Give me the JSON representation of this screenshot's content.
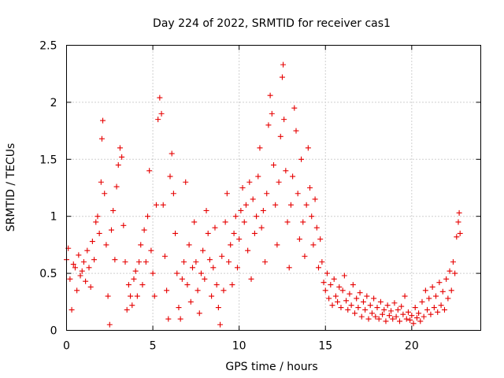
{
  "chart_data": {
    "type": "scatter",
    "title": "Day 224 of 2022, SRMTID for receiver cas1",
    "xlabel": "GPS time / hours",
    "ylabel": "SRMTID / TECUs",
    "xlim": [
      0,
      24
    ],
    "ylim": [
      0,
      2.5
    ],
    "x_ticks": [
      0,
      5,
      10,
      15,
      20
    ],
    "x_tick_labels": [
      "0",
      "5",
      "10",
      "15",
      "20"
    ],
    "y_ticks": [
      0,
      0.5,
      1,
      1.5,
      2,
      2.5
    ],
    "y_tick_labels": [
      "0",
      "0.5",
      "1",
      "1.5",
      "2",
      "2.5"
    ],
    "grid": true,
    "marker": "+",
    "color": "#e60000",
    "series": [
      {
        "name": "SRMTID",
        "points": [
          [
            0.0,
            0.62
          ],
          [
            0.1,
            0.72
          ],
          [
            0.2,
            0.45
          ],
          [
            0.3,
            0.18
          ],
          [
            0.4,
            0.58
          ],
          [
            0.5,
            0.55
          ],
          [
            0.6,
            0.35
          ],
          [
            0.7,
            0.66
          ],
          [
            0.8,
            0.48
          ],
          [
            0.9,
            0.52
          ],
          [
            1.0,
            0.6
          ],
          [
            1.1,
            0.43
          ],
          [
            1.2,
            0.7
          ],
          [
            1.3,
            0.55
          ],
          [
            1.4,
            0.38
          ],
          [
            1.5,
            0.78
          ],
          [
            1.6,
            0.62
          ],
          [
            1.7,
            0.95
          ],
          [
            1.8,
            1.0
          ],
          [
            1.9,
            0.85
          ],
          [
            2.0,
            1.3
          ],
          [
            2.05,
            1.68
          ],
          [
            2.1,
            1.84
          ],
          [
            2.2,
            1.2
          ],
          [
            2.3,
            0.75
          ],
          [
            2.4,
            0.3
          ],
          [
            2.5,
            0.05
          ],
          [
            2.6,
            0.88
          ],
          [
            2.7,
            1.05
          ],
          [
            2.8,
            0.62
          ],
          [
            2.9,
            1.26
          ],
          [
            3.0,
            1.45
          ],
          [
            3.1,
            1.6
          ],
          [
            3.2,
            1.52
          ],
          [
            3.3,
            0.92
          ],
          [
            3.4,
            0.6
          ],
          [
            3.5,
            0.18
          ],
          [
            3.6,
            0.4
          ],
          [
            3.7,
            0.3
          ],
          [
            3.8,
            0.22
          ],
          [
            3.9,
            0.45
          ],
          [
            4.0,
            0.52
          ],
          [
            4.1,
            0.3
          ],
          [
            4.2,
            0.6
          ],
          [
            4.3,
            0.75
          ],
          [
            4.4,
            0.4
          ],
          [
            4.5,
            0.88
          ],
          [
            4.6,
            0.6
          ],
          [
            4.7,
            1.0
          ],
          [
            4.8,
            1.4
          ],
          [
            4.9,
            0.7
          ],
          [
            5.0,
            0.5
          ],
          [
            5.1,
            0.3
          ],
          [
            5.2,
            1.1
          ],
          [
            5.3,
            1.85
          ],
          [
            5.4,
            2.04
          ],
          [
            5.5,
            1.9
          ],
          [
            5.6,
            1.1
          ],
          [
            5.7,
            0.65
          ],
          [
            5.8,
            0.35
          ],
          [
            5.9,
            0.1
          ],
          [
            6.0,
            1.35
          ],
          [
            6.1,
            1.55
          ],
          [
            6.2,
            1.2
          ],
          [
            6.3,
            0.85
          ],
          [
            6.4,
            0.5
          ],
          [
            6.5,
            0.2
          ],
          [
            6.6,
            0.1
          ],
          [
            6.7,
            0.45
          ],
          [
            6.8,
            0.6
          ],
          [
            6.9,
            1.3
          ],
          [
            7.0,
            0.4
          ],
          [
            7.1,
            0.75
          ],
          [
            7.2,
            0.25
          ],
          [
            7.3,
            0.55
          ],
          [
            7.4,
            0.95
          ],
          [
            7.5,
            0.6
          ],
          [
            7.6,
            0.35
          ],
          [
            7.7,
            0.15
          ],
          [
            7.8,
            0.5
          ],
          [
            7.9,
            0.7
          ],
          [
            8.0,
            0.45
          ],
          [
            8.1,
            1.05
          ],
          [
            8.2,
            0.85
          ],
          [
            8.3,
            0.62
          ],
          [
            8.4,
            0.3
          ],
          [
            8.5,
            0.55
          ],
          [
            8.6,
            0.9
          ],
          [
            8.7,
            0.4
          ],
          [
            8.8,
            0.2
          ],
          [
            8.9,
            0.05
          ],
          [
            9.0,
            0.65
          ],
          [
            9.1,
            0.35
          ],
          [
            9.2,
            0.95
          ],
          [
            9.3,
            1.2
          ],
          [
            9.4,
            0.6
          ],
          [
            9.5,
            0.75
          ],
          [
            9.6,
            0.4
          ],
          [
            9.7,
            0.85
          ],
          [
            9.8,
            1.0
          ],
          [
            9.9,
            0.55
          ],
          [
            10.0,
            0.8
          ],
          [
            10.1,
            1.05
          ],
          [
            10.2,
            1.25
          ],
          [
            10.3,
            0.95
          ],
          [
            10.4,
            1.1
          ],
          [
            10.5,
            0.7
          ],
          [
            10.6,
            1.3
          ],
          [
            10.7,
            0.45
          ],
          [
            10.8,
            1.15
          ],
          [
            10.9,
            0.85
          ],
          [
            11.0,
            1.0
          ],
          [
            11.1,
            1.35
          ],
          [
            11.2,
            1.6
          ],
          [
            11.3,
            0.9
          ],
          [
            11.4,
            1.05
          ],
          [
            11.5,
            0.6
          ],
          [
            11.6,
            1.2
          ],
          [
            11.7,
            1.8
          ],
          [
            11.8,
            2.06
          ],
          [
            11.9,
            1.9
          ],
          [
            12.0,
            1.45
          ],
          [
            12.1,
            1.1
          ],
          [
            12.2,
            0.75
          ],
          [
            12.3,
            1.3
          ],
          [
            12.4,
            1.7
          ],
          [
            12.5,
            2.22
          ],
          [
            12.55,
            2.33
          ],
          [
            12.6,
            1.85
          ],
          [
            12.7,
            1.4
          ],
          [
            12.8,
            0.95
          ],
          [
            12.9,
            0.55
          ],
          [
            13.0,
            1.1
          ],
          [
            13.1,
            1.35
          ],
          [
            13.2,
            1.95
          ],
          [
            13.3,
            1.75
          ],
          [
            13.4,
            1.2
          ],
          [
            13.5,
            0.8
          ],
          [
            13.6,
            1.5
          ],
          [
            13.7,
            0.95
          ],
          [
            13.8,
            0.65
          ],
          [
            13.9,
            1.1
          ],
          [
            14.0,
            1.6
          ],
          [
            14.1,
            1.25
          ],
          [
            14.2,
            1.0
          ],
          [
            14.3,
            0.75
          ],
          [
            14.4,
            1.15
          ],
          [
            14.5,
            0.9
          ],
          [
            14.6,
            0.55
          ],
          [
            14.7,
            0.8
          ],
          [
            14.8,
            0.6
          ],
          [
            14.9,
            0.42
          ],
          [
            15.0,
            0.35
          ],
          [
            15.1,
            0.5
          ],
          [
            15.2,
            0.28
          ],
          [
            15.3,
            0.4
          ],
          [
            15.4,
            0.22
          ],
          [
            15.5,
            0.45
          ],
          [
            15.6,
            0.3
          ],
          [
            15.7,
            0.25
          ],
          [
            15.8,
            0.38
          ],
          [
            15.9,
            0.2
          ],
          [
            16.0,
            0.35
          ],
          [
            16.1,
            0.48
          ],
          [
            16.2,
            0.26
          ],
          [
            16.3,
            0.18
          ],
          [
            16.4,
            0.32
          ],
          [
            16.5,
            0.22
          ],
          [
            16.6,
            0.4
          ],
          [
            16.7,
            0.15
          ],
          [
            16.8,
            0.28
          ],
          [
            16.9,
            0.2
          ],
          [
            17.0,
            0.33
          ],
          [
            17.1,
            0.12
          ],
          [
            17.2,
            0.25
          ],
          [
            17.3,
            0.18
          ],
          [
            17.4,
            0.3
          ],
          [
            17.5,
            0.1
          ],
          [
            17.6,
            0.22
          ],
          [
            17.7,
            0.15
          ],
          [
            17.8,
            0.28
          ],
          [
            17.9,
            0.12
          ],
          [
            18.0,
            0.2
          ],
          [
            18.1,
            0.1
          ],
          [
            18.2,
            0.25
          ],
          [
            18.3,
            0.14
          ],
          [
            18.4,
            0.18
          ],
          [
            18.5,
            0.08
          ],
          [
            18.6,
            0.22
          ],
          [
            18.7,
            0.13
          ],
          [
            18.8,
            0.17
          ],
          [
            18.9,
            0.1
          ],
          [
            19.0,
            0.24
          ],
          [
            19.1,
            0.12
          ],
          [
            19.2,
            0.18
          ],
          [
            19.3,
            0.08
          ],
          [
            19.4,
            0.21
          ],
          [
            19.5,
            0.14
          ],
          [
            19.6,
            0.3
          ],
          [
            19.7,
            0.1
          ],
          [
            19.8,
            0.16
          ],
          [
            19.9,
            0.09
          ],
          [
            20.0,
            0.13
          ],
          [
            20.1,
            0.06
          ],
          [
            20.2,
            0.2
          ],
          [
            20.3,
            0.11
          ],
          [
            20.4,
            0.15
          ],
          [
            20.5,
            0.08
          ],
          [
            20.6,
            0.25
          ],
          [
            20.7,
            0.12
          ],
          [
            20.8,
            0.35
          ],
          [
            20.9,
            0.18
          ],
          [
            21.0,
            0.28
          ],
          [
            21.1,
            0.14
          ],
          [
            21.2,
            0.38
          ],
          [
            21.3,
            0.2
          ],
          [
            21.4,
            0.3
          ],
          [
            21.5,
            0.16
          ],
          [
            21.6,
            0.42
          ],
          [
            21.7,
            0.22
          ],
          [
            21.8,
            0.34
          ],
          [
            21.9,
            0.18
          ],
          [
            22.0,
            0.45
          ],
          [
            22.1,
            0.28
          ],
          [
            22.2,
            0.52
          ],
          [
            22.3,
            0.35
          ],
          [
            22.4,
            0.6
          ],
          [
            22.5,
            0.5
          ],
          [
            22.6,
            0.82
          ],
          [
            22.7,
            0.95
          ],
          [
            22.75,
            1.03
          ],
          [
            22.8,
            0.85
          ]
        ]
      }
    ]
  }
}
